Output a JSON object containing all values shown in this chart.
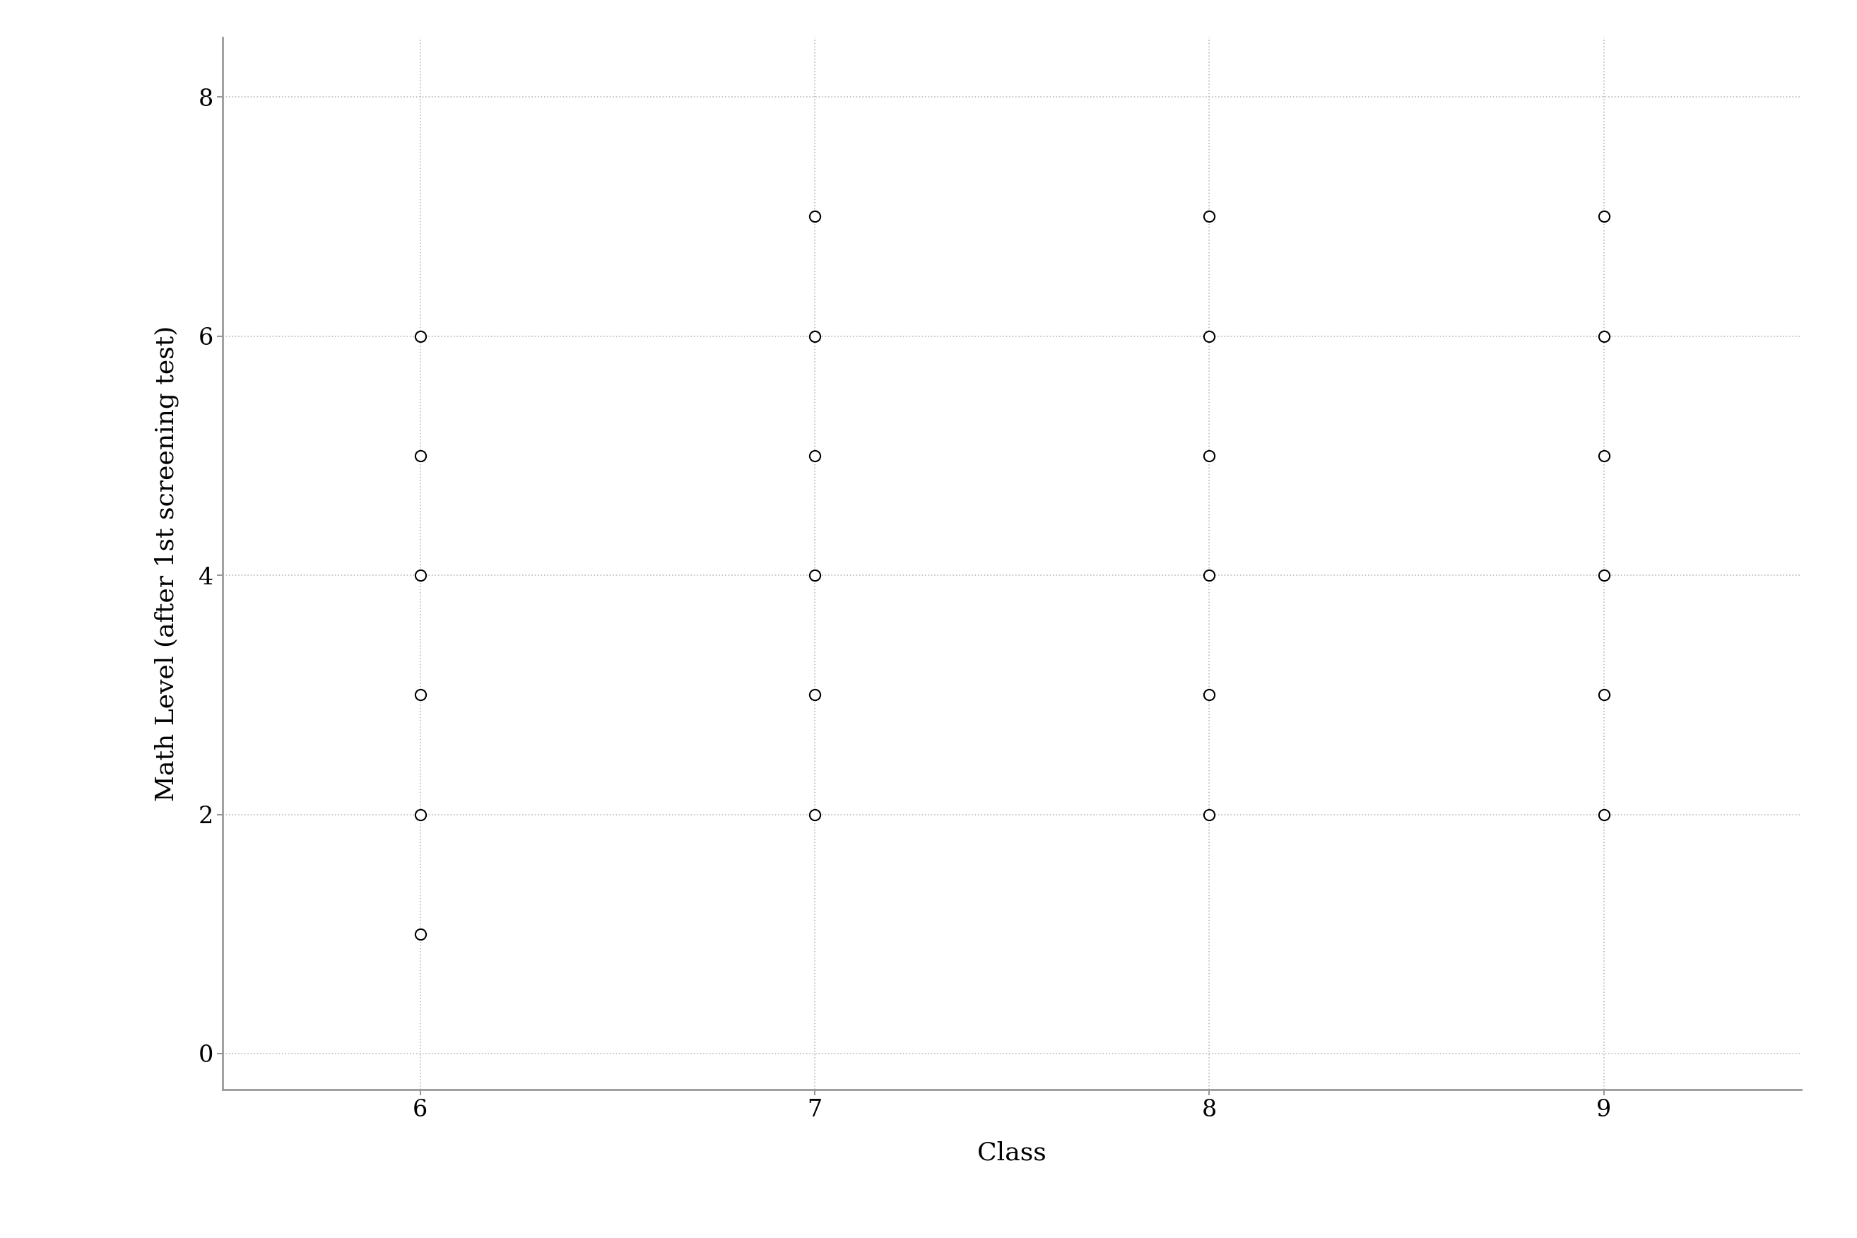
{
  "class_y_map": {
    "6": [
      1,
      2,
      3,
      4,
      5,
      6
    ],
    "7": [
      2,
      3,
      4,
      5,
      6,
      7
    ],
    "8": [
      2,
      3,
      4,
      5,
      6,
      7
    ],
    "9": [
      2,
      3,
      4,
      5,
      6,
      7
    ]
  },
  "xlabel": "Class",
  "ylabel": "Math Level (after 1st screening test)",
  "xlim": [
    5.5,
    9.5
  ],
  "ylim": [
    -0.3,
    8.5
  ],
  "xticks": [
    6,
    7,
    8,
    9
  ],
  "yticks": [
    0,
    2,
    4,
    6,
    8
  ],
  "marker_size": 120,
  "marker_color": "white",
  "marker_edge_color": "black",
  "marker_edge_width": 1.5,
  "grid_color": "#bbbbbb",
  "grid_linestyle": ":",
  "grid_linewidth": 1.2,
  "background_color": "white",
  "xlabel_fontsize": 26,
  "ylabel_fontsize": 26,
  "tick_fontsize": 24,
  "figure_width": 26.28,
  "figure_height": 17.52,
  "spine_color": "#999999",
  "spine_linewidth": 2.0,
  "font_family": "serif"
}
